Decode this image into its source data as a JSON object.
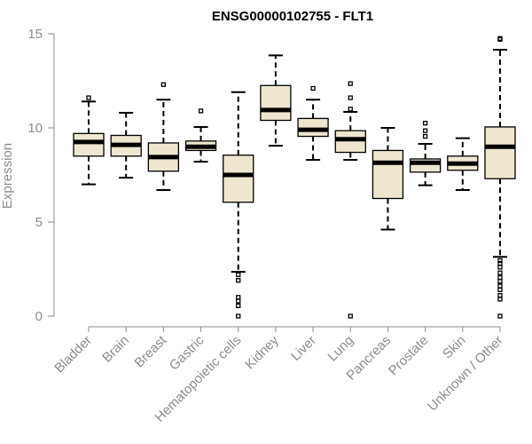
{
  "chart_data": {
    "type": "boxplot",
    "title": "ENSG00000102755 - FLT1",
    "xlabel": "",
    "ylabel": "Expression",
    "ylim": [
      0,
      15
    ],
    "yticks": [
      0,
      5,
      10,
      15
    ],
    "box_fill": "#efe6cf",
    "categories": [
      "Bladder",
      "Brain",
      "Breast",
      "Gastric",
      "Hematopoietic cells",
      "Kidney",
      "Liver",
      "Lung",
      "Pancreas",
      "Prostate",
      "Skin",
      "Unknown / Other"
    ],
    "boxes": [
      {
        "category": "Bladder",
        "whisker_low": 7.0,
        "q1": 8.5,
        "median": 9.25,
        "q3": 9.7,
        "whisker_high": 11.4,
        "outliers": [
          11.6
        ]
      },
      {
        "category": "Brain",
        "whisker_low": 7.35,
        "q1": 8.5,
        "median": 9.1,
        "q3": 9.6,
        "whisker_high": 10.8,
        "outliers": []
      },
      {
        "category": "Breast",
        "whisker_low": 6.7,
        "q1": 7.7,
        "median": 8.45,
        "q3": 9.2,
        "whisker_high": 11.5,
        "outliers": [
          12.3
        ]
      },
      {
        "category": "Gastric",
        "whisker_low": 8.2,
        "q1": 8.8,
        "median": 9.0,
        "q3": 9.3,
        "whisker_high": 10.05,
        "outliers": [
          10.9
        ]
      },
      {
        "category": "Hematopoietic cells",
        "whisker_low": 2.35,
        "q1": 6.05,
        "median": 7.5,
        "q3": 8.55,
        "whisker_high": 11.9,
        "outliers": [
          2.2,
          1.9,
          1.0,
          0.8,
          0.55,
          0.0
        ]
      },
      {
        "category": "Kidney",
        "whisker_low": 9.05,
        "q1": 10.4,
        "median": 10.95,
        "q3": 12.25,
        "whisker_high": 13.85,
        "outliers": []
      },
      {
        "category": "Liver",
        "whisker_low": 8.3,
        "q1": 9.55,
        "median": 9.9,
        "q3": 10.5,
        "whisker_high": 11.5,
        "outliers": [
          12.1
        ]
      },
      {
        "category": "Lung",
        "whisker_low": 8.3,
        "q1": 8.7,
        "median": 9.4,
        "q3": 9.85,
        "whisker_high": 10.85,
        "outliers": [
          12.35,
          11.6,
          11.0,
          0.0
        ]
      },
      {
        "category": "Pancreas",
        "whisker_low": 4.6,
        "q1": 6.25,
        "median": 8.15,
        "q3": 8.8,
        "whisker_high": 10.0,
        "outliers": []
      },
      {
        "category": "Prostate",
        "whisker_low": 6.95,
        "q1": 7.65,
        "median": 8.15,
        "q3": 8.35,
        "whisker_high": 9.15,
        "outliers": [
          10.25,
          9.85,
          9.55
        ]
      },
      {
        "category": "Skin",
        "whisker_low": 6.7,
        "q1": 7.75,
        "median": 8.1,
        "q3": 8.5,
        "whisker_high": 9.45,
        "outliers": []
      },
      {
        "category": "Unknown / Other",
        "whisker_low": 3.15,
        "q1": 7.3,
        "median": 9.0,
        "q3": 10.05,
        "whisker_high": 14.15,
        "outliers": [
          14.75,
          14.7,
          2.95,
          2.8,
          2.6,
          2.3,
          2.05,
          1.85,
          1.6,
          1.4,
          1.1,
          0.9,
          0.0
        ]
      }
    ]
  }
}
